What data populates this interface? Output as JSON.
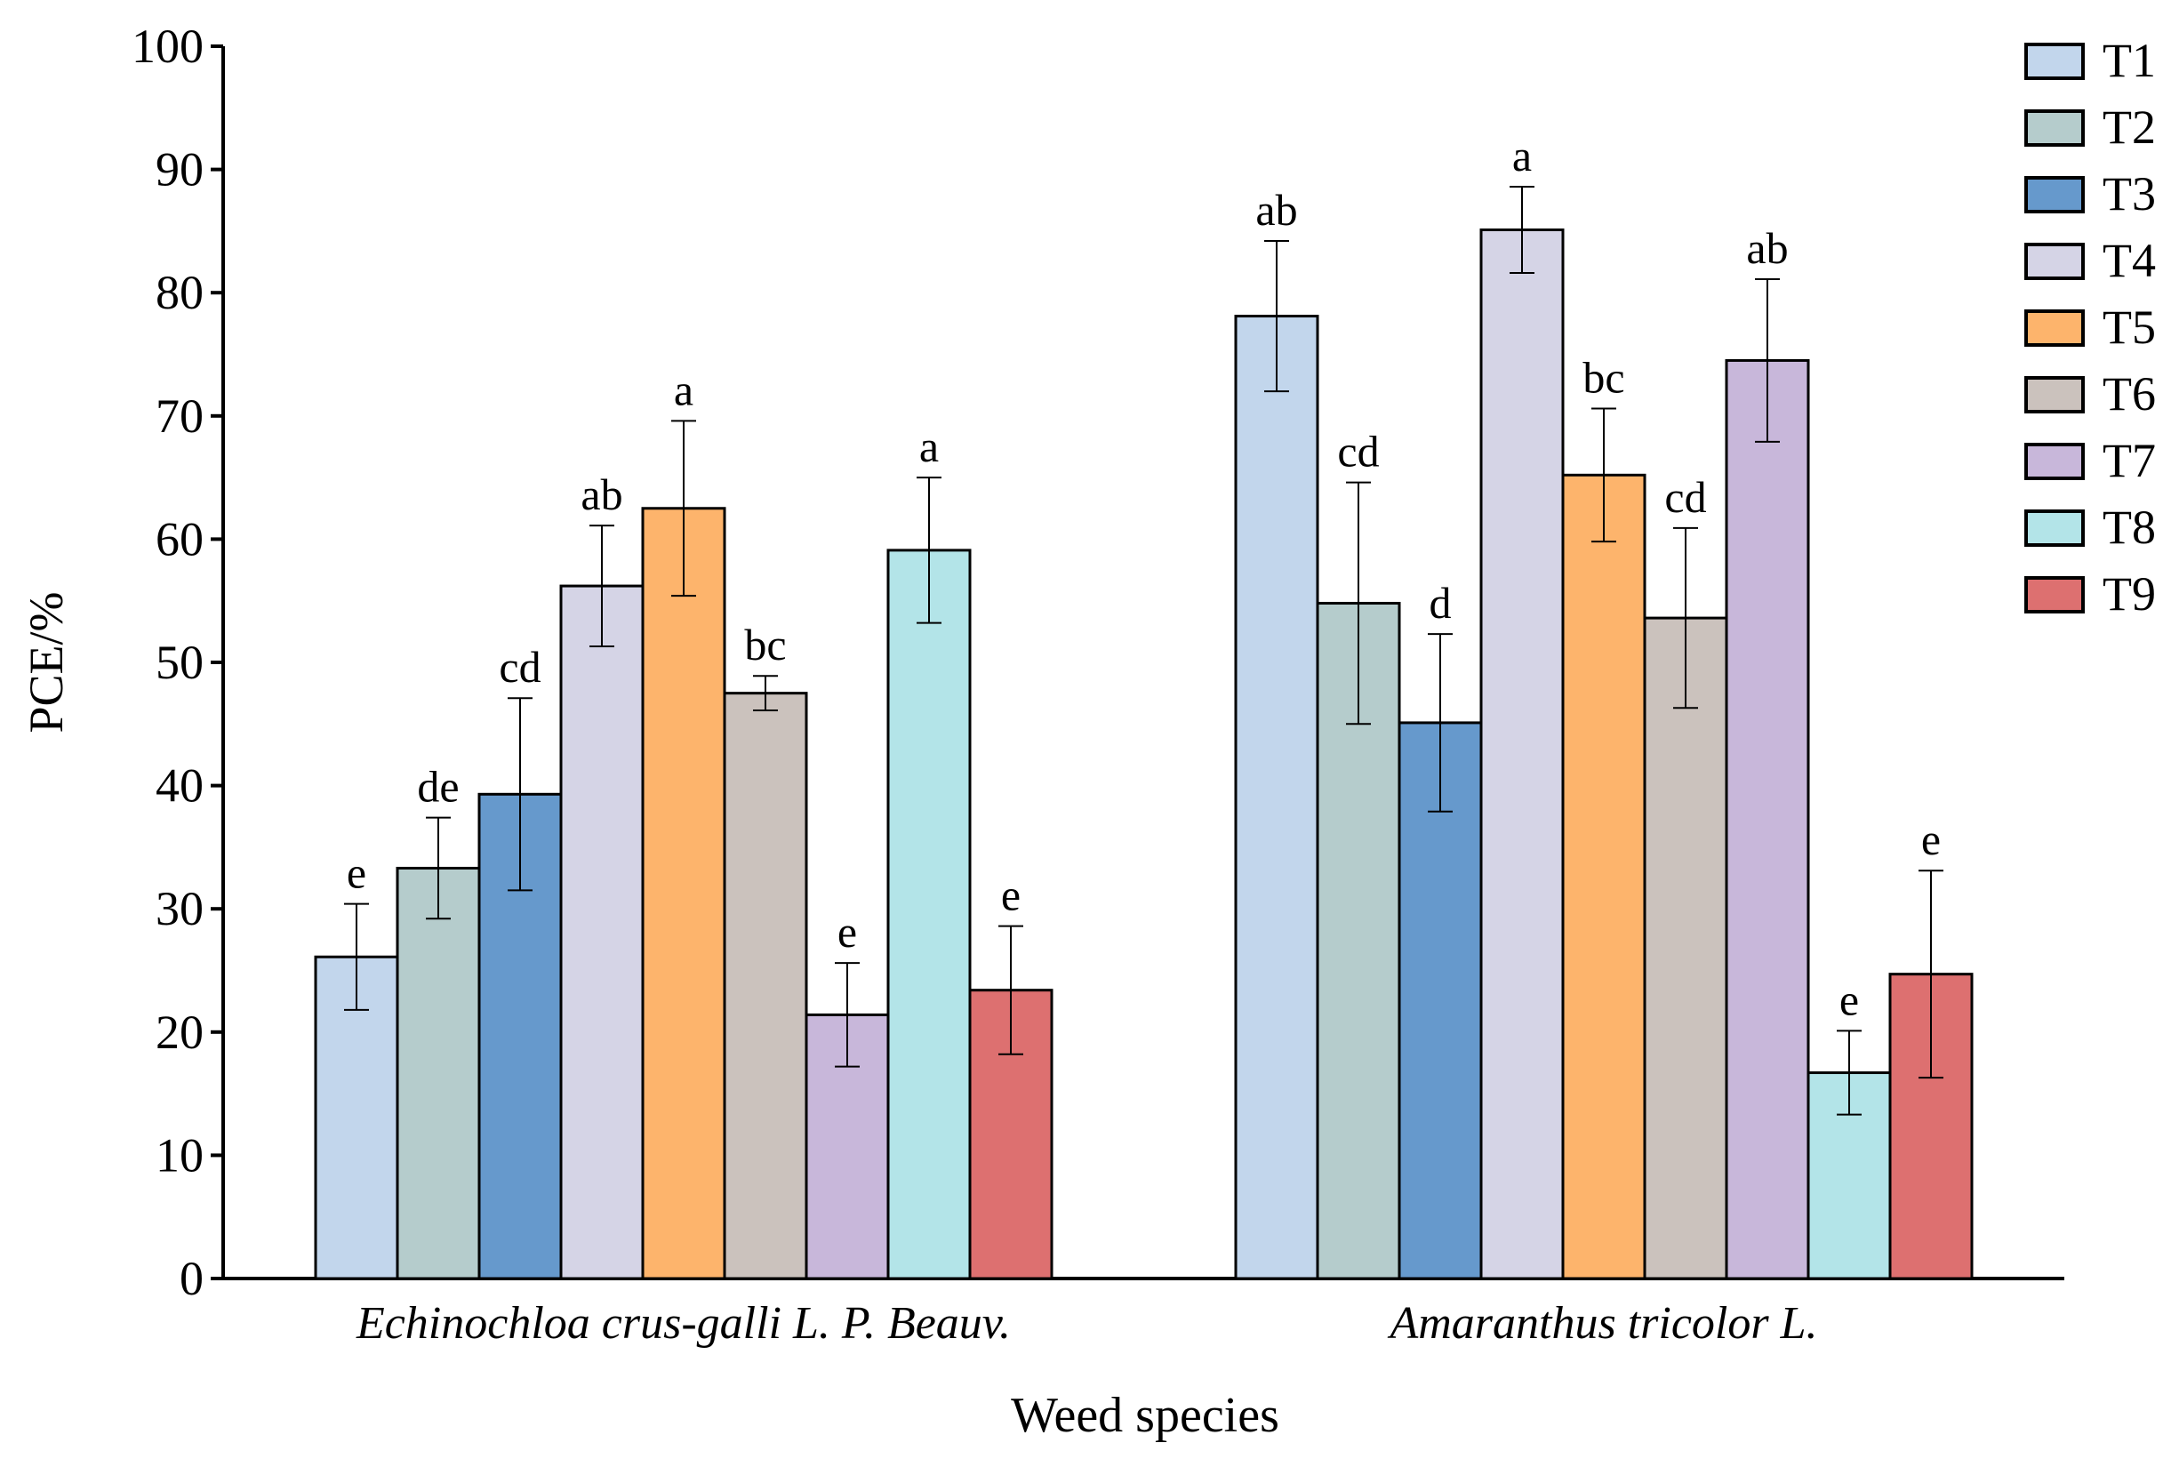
{
  "chart_data": {
    "type": "bar",
    "title": "",
    "xlabel": "Weed species",
    "ylabel": "PCE/%",
    "ylim": [
      0,
      100
    ],
    "yticks": [
      0,
      10,
      20,
      30,
      40,
      50,
      60,
      70,
      80,
      90,
      100
    ],
    "categories": [
      "Echinochloa crus-galli L. P. Beauv.",
      "Amaranthus tricolor L."
    ],
    "legend_position": "top-right",
    "grid": false,
    "series": [
      {
        "name": "T1",
        "color": "#c2d6ec",
        "values": [
          26.1,
          78.1
        ],
        "errors": [
          4.3,
          6.1
        ],
        "letters": [
          "e",
          "ab"
        ]
      },
      {
        "name": "T2",
        "color": "#b5cccc",
        "values": [
          33.3,
          54.8
        ],
        "errors": [
          4.1,
          9.8
        ],
        "letters": [
          "de",
          "cd"
        ]
      },
      {
        "name": "T3",
        "color": "#6699cc",
        "values": [
          39.3,
          45.1
        ],
        "errors": [
          7.8,
          7.2
        ],
        "letters": [
          "cd",
          "d"
        ]
      },
      {
        "name": "T4",
        "color": "#d5d4e6",
        "values": [
          56.2,
          85.1
        ],
        "errors": [
          4.9,
          3.5
        ],
        "letters": [
          "ab",
          "a"
        ]
      },
      {
        "name": "T5",
        "color": "#fdb46c",
        "values": [
          62.5,
          65.2
        ],
        "errors": [
          7.1,
          5.4
        ],
        "letters": [
          "a",
          "bc"
        ]
      },
      {
        "name": "T6",
        "color": "#cbc2bd",
        "values": [
          47.5,
          53.6
        ],
        "errors": [
          1.4,
          7.3
        ],
        "letters": [
          "bc",
          "cd"
        ]
      },
      {
        "name": "T7",
        "color": "#c8b7da",
        "values": [
          21.4,
          74.5
        ],
        "errors": [
          4.2,
          6.6
        ],
        "letters": [
          "e",
          "ab"
        ]
      },
      {
        "name": "T8",
        "color": "#b3e4e8",
        "values": [
          59.1,
          16.7
        ],
        "errors": [
          5.9,
          3.4
        ],
        "letters": [
          "a",
          "e"
        ]
      },
      {
        "name": "T9",
        "color": "#dd7070",
        "values": [
          23.4,
          24.7
        ],
        "errors": [
          5.2,
          8.4
        ],
        "letters": [
          "e",
          "e"
        ]
      }
    ]
  }
}
